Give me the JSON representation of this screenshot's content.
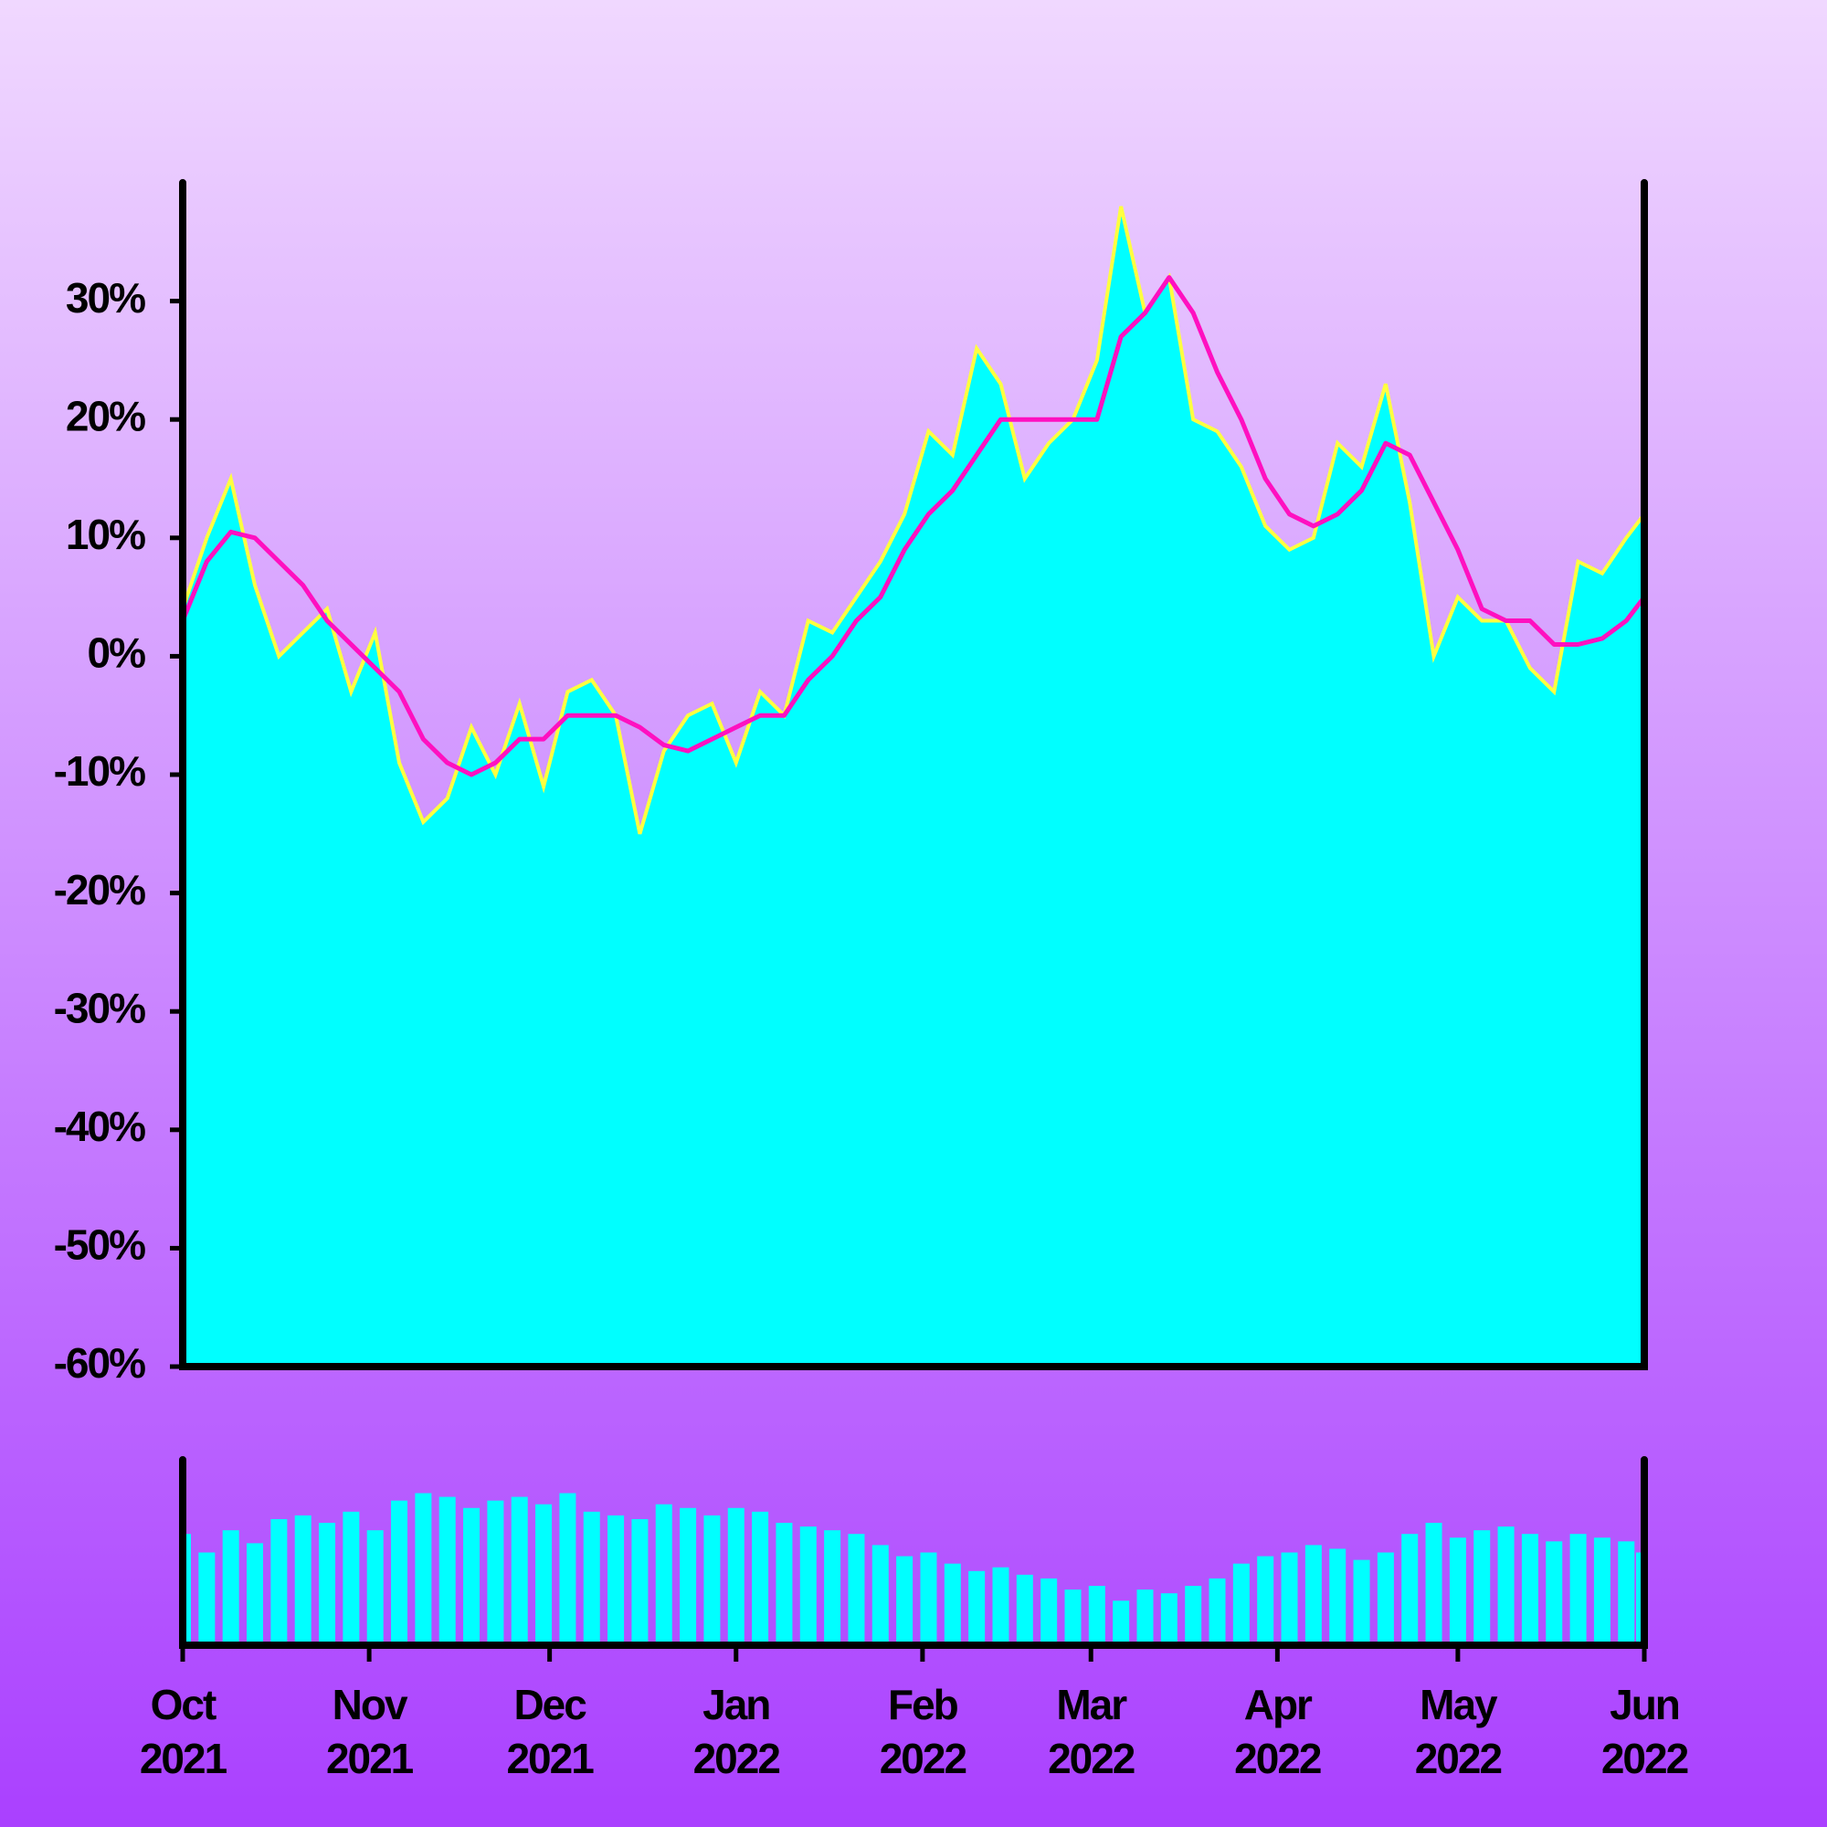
{
  "chart_data": [
    {
      "type": "area",
      "x": [
        "2021-10-01",
        "2021-10-05",
        "2021-10-09",
        "2021-10-13",
        "2021-10-17",
        "2021-10-21",
        "2021-10-25",
        "2021-10-29",
        "2021-11-02",
        "2021-11-06",
        "2021-11-10",
        "2021-11-14",
        "2021-11-18",
        "2021-11-22",
        "2021-11-26",
        "2021-11-30",
        "2021-12-04",
        "2021-12-08",
        "2021-12-12",
        "2021-12-16",
        "2021-12-20",
        "2021-12-24",
        "2021-12-28",
        "2022-01-01",
        "2022-01-05",
        "2022-01-09",
        "2022-01-13",
        "2022-01-17",
        "2022-01-21",
        "2022-01-25",
        "2022-01-29",
        "2022-02-02",
        "2022-02-06",
        "2022-02-10",
        "2022-02-14",
        "2022-02-18",
        "2022-02-22",
        "2022-02-26",
        "2022-03-02",
        "2022-03-06",
        "2022-03-10",
        "2022-03-14",
        "2022-03-18",
        "2022-03-22",
        "2022-03-26",
        "2022-03-30",
        "2022-04-03",
        "2022-04-07",
        "2022-04-11",
        "2022-04-15",
        "2022-04-19",
        "2022-04-23",
        "2022-04-27",
        "2022-05-01",
        "2022-05-05",
        "2022-05-09",
        "2022-05-13",
        "2022-05-17",
        "2022-05-21",
        "2022-05-25",
        "2022-05-29",
        "2022-06-01"
      ],
      "series": [
        {
          "color": "#00ffff",
          "line_color": "#ffff40",
          "values": [
            4,
            10,
            15,
            6,
            0,
            2,
            4,
            -3,
            2,
            -9,
            -14,
            -12,
            -6,
            -10,
            -4,
            -11,
            -3,
            -2,
            -5,
            -15,
            -8,
            -5,
            -4,
            -9,
            -3,
            -5,
            3,
            2,
            5,
            8,
            12,
            19,
            17,
            26,
            23,
            15,
            18,
            20,
            25,
            38,
            29,
            32,
            20,
            19,
            16,
            11,
            9,
            10,
            18,
            16,
            23,
            13,
            0,
            5,
            3,
            3,
            -1,
            -3,
            8,
            7,
            10,
            12
          ]
        },
        {
          "color": "#ff10c0",
          "values": [
            3,
            8,
            10.5,
            10,
            8,
            6,
            3,
            1,
            -1,
            -3,
            -7,
            -9,
            -10,
            -9,
            -7,
            -7,
            -5,
            -5,
            -5,
            -6,
            -7.5,
            -8,
            -7,
            -6,
            -5,
            -5,
            -2,
            0,
            3,
            5,
            9,
            12,
            14,
            17,
            20,
            20,
            20,
            20,
            20,
            27,
            29,
            32,
            29,
            24,
            20,
            15,
            12,
            11,
            12,
            14,
            18,
            17,
            13,
            9,
            4,
            3,
            3,
            1,
            1,
            1.5,
            3,
            5
          ]
        }
      ],
      "xlim": [
        "2021-10-01",
        "2022-06-01"
      ],
      "ylim": [
        -60,
        40
      ],
      "yticks": [
        {
          "value": -60,
          "label": "-60%"
        },
        {
          "value": -50,
          "label": "-50%"
        },
        {
          "value": -40,
          "label": "-40%"
        },
        {
          "value": -30,
          "label": "-30%"
        },
        {
          "value": -20,
          "label": "-20%"
        },
        {
          "value": -10,
          "label": "-10%"
        },
        {
          "value": 0,
          "label": "0%"
        },
        {
          "value": 10,
          "label": "10%"
        },
        {
          "value": 20,
          "label": "20%"
        },
        {
          "value": 30,
          "label": "30%"
        }
      ]
    },
    {
      "type": "bar",
      "x": [
        "2021-10-01",
        "2021-10-05",
        "2021-10-09",
        "2021-10-13",
        "2021-10-17",
        "2021-10-21",
        "2021-10-25",
        "2021-10-29",
        "2021-11-02",
        "2021-11-06",
        "2021-11-10",
        "2021-11-14",
        "2021-11-18",
        "2021-11-22",
        "2021-11-26",
        "2021-11-30",
        "2021-12-04",
        "2021-12-08",
        "2021-12-12",
        "2021-12-16",
        "2021-12-20",
        "2021-12-24",
        "2021-12-28",
        "2022-01-01",
        "2022-01-05",
        "2022-01-09",
        "2022-01-13",
        "2022-01-17",
        "2022-01-21",
        "2022-01-25",
        "2022-01-29",
        "2022-02-02",
        "2022-02-06",
        "2022-02-10",
        "2022-02-14",
        "2022-02-18",
        "2022-02-22",
        "2022-02-26",
        "2022-03-02",
        "2022-03-06",
        "2022-03-10",
        "2022-03-14",
        "2022-03-18",
        "2022-03-22",
        "2022-03-26",
        "2022-03-30",
        "2022-04-03",
        "2022-04-07",
        "2022-04-11",
        "2022-04-15",
        "2022-04-19",
        "2022-04-23",
        "2022-04-27",
        "2022-05-01",
        "2022-05-05",
        "2022-05-09",
        "2022-05-13",
        "2022-05-17",
        "2022-05-21",
        "2022-05-25",
        "2022-05-29",
        "2022-06-01"
      ],
      "values": [
        60,
        50,
        62,
        55,
        68,
        70,
        66,
        72,
        62,
        78,
        82,
        80,
        74,
        78,
        80,
        76,
        82,
        72,
        70,
        68,
        76,
        74,
        70,
        74,
        72,
        66,
        64,
        62,
        60,
        54,
        48,
        50,
        44,
        40,
        42,
        38,
        36,
        30,
        32,
        24,
        30,
        28,
        32,
        36,
        44,
        48,
        50,
        54,
        52,
        46,
        50,
        60,
        66,
        58,
        62,
        64,
        60,
        56,
        60,
        58,
        56,
        50
      ],
      "color": "#00ffff",
      "xlim": [
        "2021-10-01",
        "2022-06-01"
      ],
      "ylim": [
        0,
        100
      ],
      "xticks": [
        {
          "value": "2021-10-01",
          "label": "Oct 2021"
        },
        {
          "value": "2021-11-01",
          "label": "Nov 2021"
        },
        {
          "value": "2021-12-01",
          "label": "Dec 2021"
        },
        {
          "value": "2022-01-01",
          "label": "Jan 2022"
        },
        {
          "value": "2022-02-01",
          "label": "Feb 2022"
        },
        {
          "value": "2022-03-01",
          "label": "Mar 2022"
        },
        {
          "value": "2022-04-01",
          "label": "Apr 2022"
        },
        {
          "value": "2022-05-01",
          "label": "May 2022"
        },
        {
          "value": "2022-06-01",
          "label": "Jun 2022"
        }
      ]
    }
  ]
}
